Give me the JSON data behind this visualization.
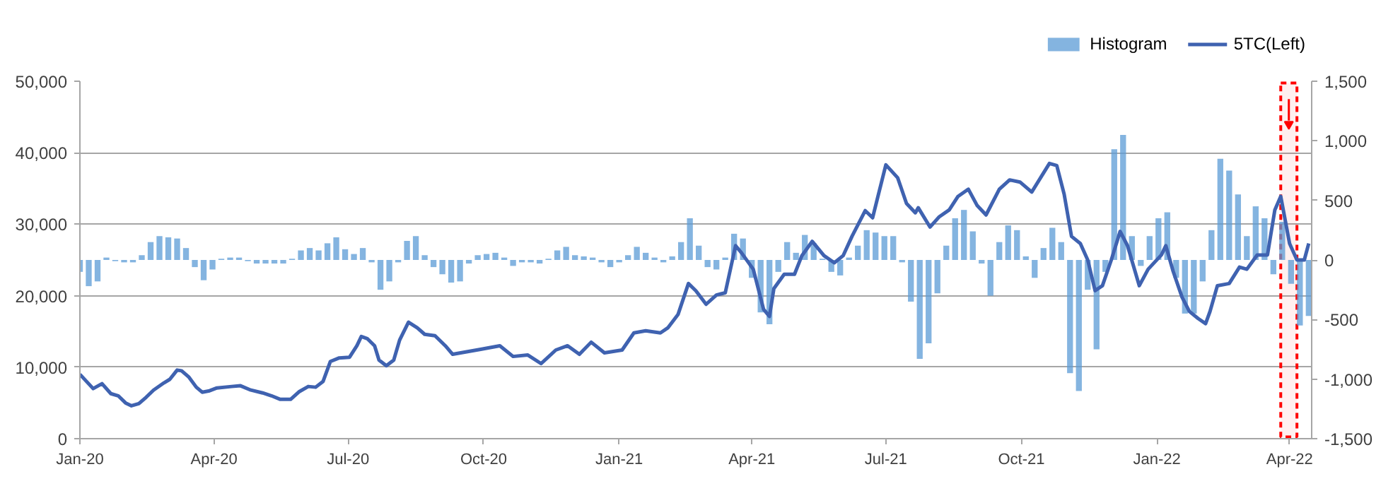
{
  "chart_data": {
    "type": "bar",
    "xlim": [
      "2020-01-01",
      "2022-04-16"
    ],
    "xticks": [
      {
        "value": "2020-01-01",
        "label": "Jan-20"
      },
      {
        "value": "2020-04-01",
        "label": "Apr-20"
      },
      {
        "value": "2020-07-01",
        "label": "Jul-20"
      },
      {
        "value": "2020-10-01",
        "label": "Oct-20"
      },
      {
        "value": "2021-01-01",
        "label": "Jan-21"
      },
      {
        "value": "2021-04-01",
        "label": "Apr-21"
      },
      {
        "value": "2021-07-01",
        "label": "Jul-21"
      },
      {
        "value": "2021-10-01",
        "label": "Oct-21"
      },
      {
        "value": "2022-01-01",
        "label": "Jan-22"
      },
      {
        "value": "2022-04-01",
        "label": "Apr-22"
      }
    ],
    "ylim": [
      0,
      50000
    ],
    "yticks": [
      0,
      {
        "value": 10000,
        "label": "10,000"
      },
      {
        "value": 20000,
        "label": "20,000"
      },
      {
        "value": 30000,
        "label": "30,000"
      },
      {
        "value": 40000,
        "label": "40,000"
      },
      {
        "value": 50000,
        "label": "50,000"
      }
    ],
    "y2lim": [
      -1500,
      1500
    ],
    "y2ticks": [
      {
        "value": -1500,
        "label": "-1,500"
      },
      {
        "value": -1000,
        "label": "-1,000"
      },
      -500,
      0,
      500,
      {
        "value": 1000,
        "label": "1,000"
      },
      {
        "value": 1500,
        "label": "1,500"
      }
    ],
    "grid": "y",
    "legend": "top right",
    "bands": [
      {
        "axis": "x",
        "from": "2022-03-26",
        "to": "2022-04-06",
        "color": "#ff0000"
      }
    ],
    "series": [
      {
        "name": "Histogram",
        "axis": "y2",
        "color": "#5b9bd5",
        "x": [
          "2020-01-01",
          "2020-01-07",
          "2020-01-13",
          "2020-01-19",
          "2020-01-25",
          "2020-01-31",
          "2020-02-06",
          "2020-02-12",
          "2020-02-18",
          "2020-02-24",
          "2020-03-01",
          "2020-03-07",
          "2020-03-13",
          "2020-03-19",
          "2020-03-25",
          "2020-03-31",
          "2020-04-06",
          "2020-04-12",
          "2020-04-18",
          "2020-04-24",
          "2020-04-30",
          "2020-05-06",
          "2020-05-12",
          "2020-05-18",
          "2020-05-24",
          "2020-05-30",
          "2020-06-05",
          "2020-06-11",
          "2020-06-17",
          "2020-06-23",
          "2020-06-29",
          "2020-07-05",
          "2020-07-11",
          "2020-07-17",
          "2020-07-23",
          "2020-07-29",
          "2020-08-04",
          "2020-08-10",
          "2020-08-16",
          "2020-08-22",
          "2020-08-28",
          "2020-09-03",
          "2020-09-09",
          "2020-09-15",
          "2020-09-21",
          "2020-09-27",
          "2020-10-03",
          "2020-10-09",
          "2020-10-15",
          "2020-10-21",
          "2020-10-27",
          "2020-11-02",
          "2020-11-08",
          "2020-11-14",
          "2020-11-20",
          "2020-11-26",
          "2020-12-02",
          "2020-12-08",
          "2020-12-14",
          "2020-12-20",
          "2020-12-26",
          "2021-01-01",
          "2021-01-07",
          "2021-01-13",
          "2021-01-19",
          "2021-01-25",
          "2021-01-31",
          "2021-02-06",
          "2021-02-12",
          "2021-02-18",
          "2021-02-24",
          "2021-03-02",
          "2021-03-08",
          "2021-03-14",
          "2021-03-20",
          "2021-03-26",
          "2021-04-01",
          "2021-04-07",
          "2021-04-13",
          "2021-04-19",
          "2021-04-25",
          "2021-05-01",
          "2021-05-07",
          "2021-05-13",
          "2021-05-19",
          "2021-05-25",
          "2021-05-31",
          "2021-06-06",
          "2021-06-12",
          "2021-06-18",
          "2021-06-24",
          "2021-06-30",
          "2021-07-06",
          "2021-07-12",
          "2021-07-18",
          "2021-07-24",
          "2021-07-30",
          "2021-08-05",
          "2021-08-11",
          "2021-08-17",
          "2021-08-23",
          "2021-08-29",
          "2021-09-04",
          "2021-09-10",
          "2021-09-16",
          "2021-09-22",
          "2021-09-28",
          "2021-10-04",
          "2021-10-10",
          "2021-10-16",
          "2021-10-22",
          "2021-10-28",
          "2021-11-03",
          "2021-11-09",
          "2021-11-15",
          "2021-11-21",
          "2021-11-27",
          "2021-12-03",
          "2021-12-09",
          "2021-12-15",
          "2021-12-21",
          "2021-12-27",
          "2022-01-02",
          "2022-01-08",
          "2022-01-14",
          "2022-01-20",
          "2022-01-26",
          "2022-02-01",
          "2022-02-07",
          "2022-02-13",
          "2022-02-19",
          "2022-02-25",
          "2022-03-03",
          "2022-03-09",
          "2022-03-15",
          "2022-03-21",
          "2022-03-27",
          "2022-04-02",
          "2022-04-08",
          "2022-04-14"
        ],
        "values": [
          -100,
          -220,
          -180,
          20,
          -10,
          -20,
          -20,
          40,
          150,
          200,
          190,
          180,
          100,
          -60,
          -170,
          -80,
          10,
          20,
          20,
          -10,
          -30,
          -30,
          -30,
          -30,
          10,
          80,
          100,
          80,
          140,
          190,
          90,
          50,
          100,
          -20,
          -250,
          -180,
          -20,
          160,
          200,
          40,
          -60,
          -120,
          -190,
          -180,
          -30,
          40,
          50,
          60,
          20,
          -50,
          -20,
          -20,
          -30,
          10,
          80,
          110,
          40,
          30,
          20,
          -20,
          -60,
          -20,
          40,
          110,
          60,
          20,
          -20,
          30,
          150,
          350,
          120,
          -60,
          -80,
          20,
          220,
          180,
          -150,
          -440,
          -540,
          -100,
          150,
          60,
          210,
          140,
          10,
          -100,
          -130,
          20,
          120,
          250,
          230,
          200,
          200,
          -20,
          -350,
          -830,
          -700,
          -280,
          120,
          350,
          420,
          240,
          -30,
          -300,
          150,
          290,
          250,
          30,
          -150,
          100,
          270,
          150,
          -950,
          -1100,
          -250,
          -750,
          -100,
          930,
          1050,
          200,
          -50,
          200,
          350,
          400,
          -150,
          -450,
          -450,
          -180,
          250,
          850,
          750,
          550,
          200,
          450,
          350,
          -120,
          320,
          -200,
          -550,
          -470
        ]
      },
      {
        "name": "5TC(Left)",
        "type": "line",
        "color": "#3f62b0",
        "x": [
          "2020-01-01",
          "2020-01-10",
          "2020-01-16",
          "2020-01-22",
          "2020-01-27",
          "2020-02-01",
          "2020-02-05",
          "2020-02-10",
          "2020-02-15",
          "2020-02-20",
          "2020-02-27",
          "2020-03-02",
          "2020-03-07",
          "2020-03-10",
          "2020-03-15",
          "2020-03-20",
          "2020-03-24",
          "2020-03-29",
          "2020-04-03",
          "2020-04-13",
          "2020-04-19",
          "2020-04-26",
          "2020-05-04",
          "2020-05-10",
          "2020-05-16",
          "2020-05-23",
          "2020-05-29",
          "2020-06-04",
          "2020-06-09",
          "2020-06-14",
          "2020-06-19",
          "2020-06-25",
          "2020-07-02",
          "2020-07-07",
          "2020-07-10",
          "2020-07-14",
          "2020-07-19",
          "2020-07-22",
          "2020-07-27",
          "2020-08-01",
          "2020-08-05",
          "2020-08-11",
          "2020-08-17",
          "2020-08-22",
          "2020-08-29",
          "2020-09-05",
          "2020-09-10",
          "2020-09-29",
          "2020-10-12",
          "2020-10-21",
          "2020-10-31",
          "2020-11-09",
          "2020-11-19",
          "2020-11-27",
          "2020-12-05",
          "2020-12-13",
          "2020-12-22",
          "2021-01-03",
          "2021-01-11",
          "2021-01-19",
          "2021-01-29",
          "2021-02-03",
          "2021-02-10",
          "2021-02-17",
          "2021-02-22",
          "2021-03-01",
          "2021-03-08",
          "2021-03-14",
          "2021-03-21",
          "2021-03-25",
          "2021-04-02",
          "2021-04-09",
          "2021-04-13",
          "2021-04-16",
          "2021-04-23",
          "2021-04-30",
          "2021-05-05",
          "2021-05-12",
          "2021-05-20",
          "2021-05-27",
          "2021-06-02",
          "2021-06-08",
          "2021-06-17",
          "2021-06-22",
          "2021-06-26",
          "2021-07-01",
          "2021-07-09",
          "2021-07-15",
          "2021-07-21",
          "2021-07-23",
          "2021-07-31",
          "2021-08-06",
          "2021-08-13",
          "2021-08-19",
          "2021-08-26",
          "2021-09-01",
          "2021-09-07",
          "2021-09-16",
          "2021-09-23",
          "2021-09-30",
          "2021-10-08",
          "2021-10-14",
          "2021-10-20",
          "2021-10-25",
          "2021-10-30",
          "2021-11-04",
          "2021-11-10",
          "2021-11-15",
          "2021-11-20",
          "2021-11-25",
          "2021-12-01",
          "2021-12-07",
          "2021-12-12",
          "2021-12-20",
          "2021-12-26",
          "2022-01-04",
          "2022-01-07",
          "2022-01-12",
          "2022-01-18",
          "2022-01-23",
          "2022-01-29",
          "2022-02-03",
          "2022-02-06",
          "2022-02-11",
          "2022-02-19",
          "2022-02-26",
          "2022-03-03",
          "2022-03-10",
          "2022-03-17",
          "2022-03-22",
          "2022-03-26",
          "2022-04-01",
          "2022-04-06",
          "2022-04-11",
          "2022-04-14"
        ],
        "values": [
          9000,
          7000,
          7700,
          6300,
          6000,
          5000,
          4600,
          4900,
          5800,
          6800,
          7800,
          8300,
          9600,
          9500,
          8600,
          7200,
          6500,
          6700,
          7100,
          7300,
          7400,
          6800,
          6400,
          6000,
          5500,
          5500,
          6600,
          7300,
          7200,
          8000,
          10800,
          11300,
          11400,
          13000,
          14300,
          14000,
          13000,
          11000,
          10200,
          11000,
          13800,
          16300,
          15500,
          14600,
          14400,
          13000,
          11800,
          12500,
          13000,
          11500,
          11700,
          10500,
          12400,
          13000,
          11800,
          13500,
          12000,
          12400,
          14800,
          15100,
          14800,
          15500,
          17400,
          21700,
          20700,
          18800,
          20100,
          20400,
          27000,
          26000,
          23700,
          18100,
          17100,
          21000,
          23000,
          23000,
          25600,
          27600,
          25600,
          24600,
          25600,
          28300,
          31900,
          30900,
          34200,
          38300,
          36500,
          32900,
          31600,
          32300,
          29600,
          31000,
          32000,
          33900,
          34900,
          32600,
          31300,
          34900,
          36200,
          35900,
          34500,
          36500,
          38500,
          38200,
          34200,
          28300,
          27300,
          25000,
          20700,
          21400,
          25000,
          29000,
          27000,
          21400,
          23700,
          25700,
          27000,
          23400,
          19800,
          17800,
          16800,
          16100,
          17800,
          21400,
          21700,
          24000,
          23700,
          25700,
          25700,
          32000,
          33900,
          27300,
          25000,
          25000,
          27300
        ]
      }
    ]
  }
}
